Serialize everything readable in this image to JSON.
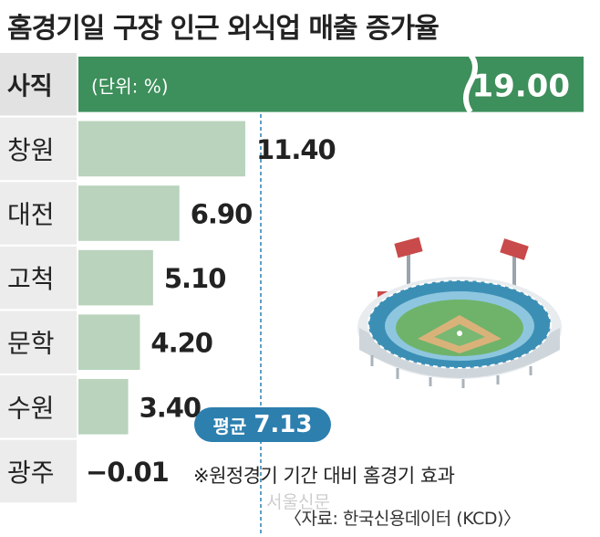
{
  "title": "홈경기일 구장 인근 외식업 매출 증가율",
  "chart_data": {
    "type": "bar",
    "orientation": "horizontal",
    "unit_label": "(단위: %)",
    "categories": [
      "사직",
      "창원",
      "대전",
      "고척",
      "문학",
      "수원",
      "광주"
    ],
    "values": [
      19.0,
      11.4,
      6.9,
      5.1,
      4.2,
      3.4,
      -0.01
    ],
    "value_labels": [
      "19.00",
      "11.40",
      "6.90",
      "5.10",
      "4.20",
      "3.40",
      "−0.01"
    ],
    "highlight_category": "사직",
    "axis_break": true,
    "average": {
      "label": "평균",
      "value": 7.13,
      "display": "7.13"
    }
  },
  "footnote": "※원정경기 기간 대비 홈경기 효과",
  "source": "〈자료: 한국신용데이터 (KCD)〉",
  "watermark": "서울신문",
  "colors": {
    "bar": "#b9d3bd",
    "highlight_bar": "#3d8f5b",
    "category_bg": "#ececec",
    "highlight_category_bg": "#e2e2e2",
    "avg_line": "#2d7fae"
  },
  "icons": [
    "baseball-stadium-icon"
  ]
}
